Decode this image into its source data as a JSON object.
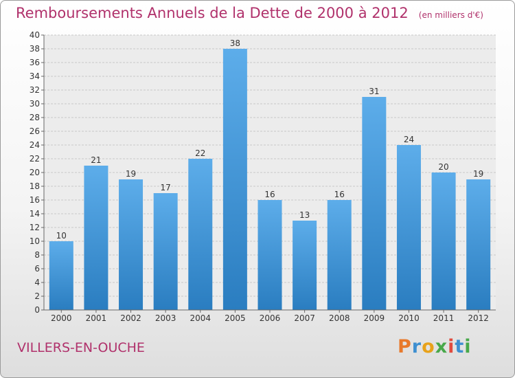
{
  "header": {
    "title": "Remboursements Annuels de la Dette de 2000 à 2012",
    "unit": "(en milliers d'€)"
  },
  "footer": {
    "city": "VILLERS-EN-OUCHE",
    "logo": "Proxiti",
    "logo_colors": [
      "#e8792b",
      "#3e8fd0",
      "#e8a21b",
      "#48a84a",
      "#e14b3f",
      "#3e8fd0",
      "#48a84a"
    ]
  },
  "chart_data": {
    "type": "bar",
    "title": "Remboursements Annuels de la Dette de 2000 à 2012",
    "categories": [
      "2000",
      "2001",
      "2002",
      "2003",
      "2004",
      "2005",
      "2006",
      "2007",
      "2008",
      "2009",
      "2010",
      "2011",
      "2012"
    ],
    "values": [
      10,
      21,
      19,
      17,
      22,
      38,
      16,
      13,
      16,
      31,
      24,
      20,
      19
    ],
    "ylim": [
      0,
      40
    ],
    "ytick_step": 2,
    "grid": "horizontal",
    "bar_color_top": "#5dadea",
    "bar_color_bottom": "#2a7dc0"
  }
}
